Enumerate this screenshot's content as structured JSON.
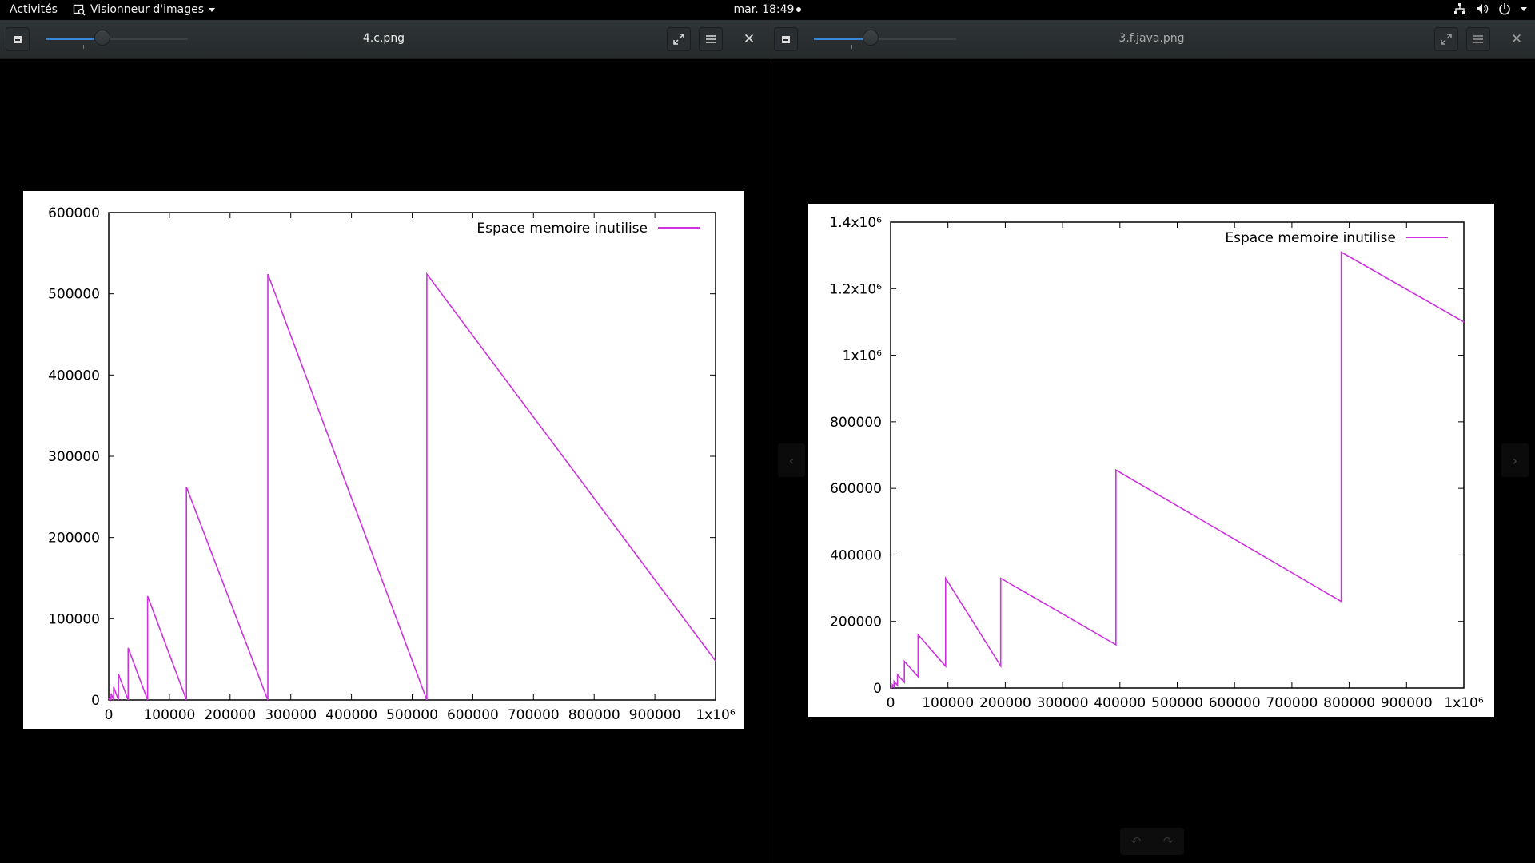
{
  "topbar": {
    "activities": "Activités",
    "app_name": "Visionneur d'images",
    "clock": "mar. 18:49",
    "icons": [
      "network-icon",
      "volume-icon",
      "power-icon",
      "chevron-down-icon"
    ]
  },
  "windows": [
    {
      "title": "4.c.png",
      "zoom_fraction": 0.4,
      "chart_data": {
        "type": "line",
        "legend": "Espace memoire inutilise",
        "legend_position": "top-right",
        "color": "#cc33dd",
        "xlim": [
          0,
          1000000
        ],
        "ylim": [
          0,
          600000
        ],
        "x_tick_labels": [
          "0",
          "100000",
          "200000",
          "300000",
          "400000",
          "500000",
          "600000",
          "700000",
          "800000",
          "900000",
          "1x10⁶"
        ],
        "y_tick_labels": [
          "0",
          "100000",
          "200000",
          "300000",
          "400000",
          "500000",
          "600000"
        ],
        "series": [
          {
            "x": [
              0,
              2000,
              2000,
              4000,
              4000,
              8000,
              8000,
              16000,
              16000,
              32000,
              32000,
              64000,
              64000,
              128000,
              128000,
              262144,
              262144,
              524288,
              524288,
              1000000
            ],
            "y": [
              2000,
              0,
              4000,
              0,
              8000,
              0,
              16000,
              0,
              32000,
              0,
              64000,
              0,
              128000,
              0,
              262144,
              0,
              524288,
              0,
              524288,
              48000
            ]
          }
        ]
      }
    },
    {
      "title": "3.f.java.png",
      "zoom_fraction": 0.4,
      "chart_data": {
        "type": "line",
        "legend": "Espace memoire inutilise",
        "legend_position": "top-right",
        "color": "#cc33dd",
        "xlim": [
          0,
          1000000
        ],
        "ylim": [
          0,
          1400000
        ],
        "x_tick_labels": [
          "0",
          "100000",
          "200000",
          "300000",
          "400000",
          "500000",
          "600000",
          "700000",
          "800000",
          "900000",
          "1x10⁶"
        ],
        "y_tick_labels": [
          "0",
          "200000",
          "400000",
          "600000",
          "800000",
          "1x10⁶",
          "1.2x10⁶",
          "1.4x10⁶"
        ],
        "series": [
          {
            "x": [
              0,
              3000,
              3000,
              6000,
              6000,
              12000,
              12000,
              24000,
              24000,
              48000,
              48000,
              96000,
              96000,
              192000,
              192000,
              393000,
              393000,
              786000,
              786000,
              1000000
            ],
            "y": [
              0,
              3000,
              10000,
              4000,
              20000,
              8000,
              40000,
              17000,
              80000,
              34000,
              160000,
              65000,
              330000,
              66000,
              330000,
              130000,
              655000,
              260000,
              1310000,
              1100000
            ]
          }
        ]
      }
    }
  ]
}
